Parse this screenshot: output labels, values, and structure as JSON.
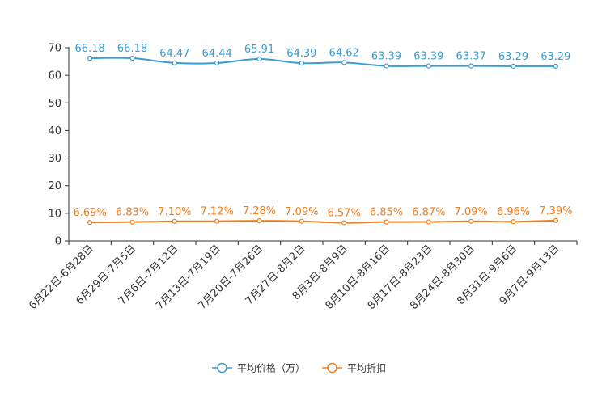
{
  "chart_data": {
    "type": "line",
    "title": "",
    "xlabel": "",
    "ylabel": "",
    "ylim": [
      0,
      70
    ],
    "yticks": [
      0,
      10,
      20,
      30,
      40,
      50,
      60,
      70
    ],
    "grid": false,
    "legend_position": "bottom-center",
    "categories": [
      "6月22日-6月28日",
      "6月29日-7月5日",
      "7月6日-7月12日",
      "7月13日-7月19日",
      "7月20日-7月26日",
      "7月27日-8月2日",
      "8月3日-8月9日",
      "8月10日-8月16日",
      "8月17日-8月23日",
      "8月24日-8月30日",
      "8月31日-9月6日",
      "9月7日-9月13日"
    ],
    "series": [
      {
        "name": "平均价格（万）",
        "color": "#3b9cd2",
        "values": [
          66.18,
          66.18,
          64.47,
          64.44,
          65.91,
          64.39,
          64.62,
          63.39,
          63.39,
          63.37,
          63.29,
          63.29
        ],
        "labels": [
          "66.18",
          "66.18",
          "64.47",
          "64.44",
          "65.91",
          "64.39",
          "64.62",
          "63.39",
          "63.39",
          "63.37",
          "63.29",
          "63.29"
        ]
      },
      {
        "name": "平均折扣",
        "color": "#f07d1a",
        "values": [
          6.69,
          6.83,
          7.1,
          7.12,
          7.28,
          7.09,
          6.57,
          6.85,
          6.87,
          7.09,
          6.96,
          7.39
        ],
        "labels": [
          "6.69%",
          "6.83%",
          "7.10%",
          "7.12%",
          "7.28%",
          "7.09%",
          "6.57%",
          "6.85%",
          "6.87%",
          "7.09%",
          "6.96%",
          "7.39%"
        ]
      }
    ]
  }
}
